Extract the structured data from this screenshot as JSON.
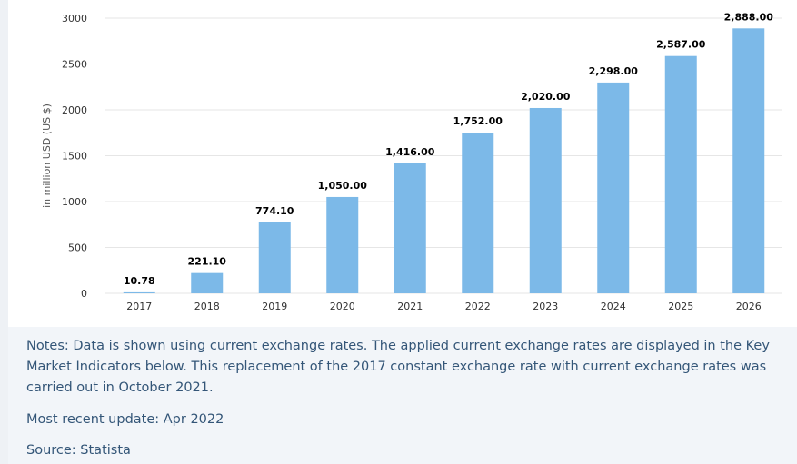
{
  "chart_data": {
    "type": "bar",
    "categories": [
      "2017",
      "2018",
      "2019",
      "2020",
      "2021",
      "2022",
      "2023",
      "2024",
      "2025",
      "2026"
    ],
    "values": [
      10.78,
      221.1,
      774.1,
      1050.0,
      1416.0,
      1752.0,
      2020.0,
      2298.0,
      2587.0,
      2888.0
    ],
    "value_labels": [
      "10.78",
      "221.10",
      "774.10",
      "1,050.00",
      "1,416.00",
      "1,752.00",
      "2,020.00",
      "2,298.00",
      "2,587.00",
      "2,888.00"
    ],
    "ylabel": "in million USD (US $)",
    "xlabel": "",
    "ylim": [
      0,
      3000
    ],
    "yticks": [
      0,
      500,
      1000,
      1500,
      2000,
      2500,
      3000
    ],
    "grid": true,
    "bar_color": "#7cb9e8"
  },
  "footer": {
    "notes": "Notes: Data is shown using current exchange rates. The applied current exchange rates are displayed in the Key Market Indicators below. This replacement of the 2017 constant exchange rate with current exchange rates was carried out in October 2021.",
    "update": "Most recent update: Apr 2022",
    "source": "Source: Statista"
  }
}
